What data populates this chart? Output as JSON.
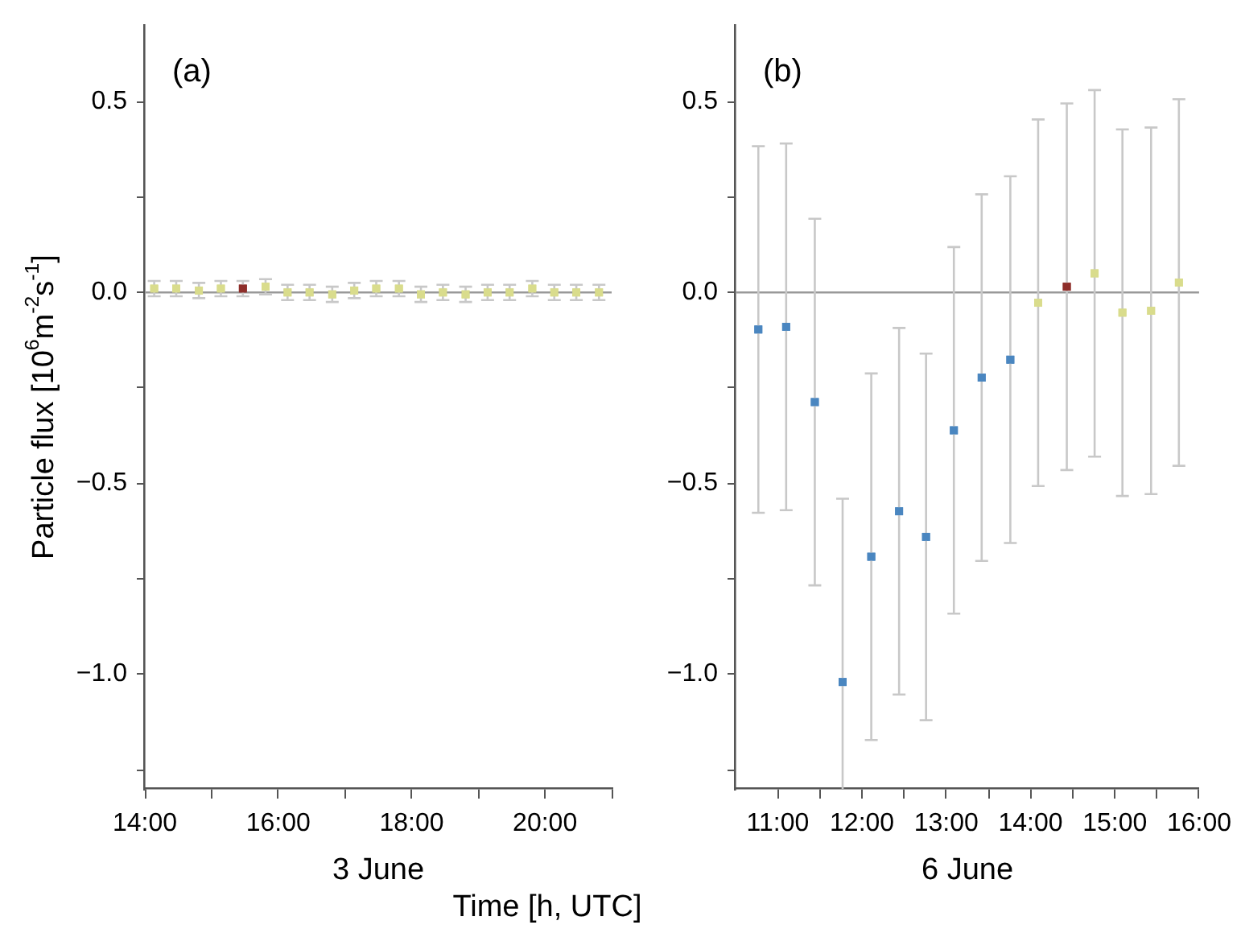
{
  "chart_data": [
    {
      "type": "scatter",
      "title": "(a)",
      "xlabel": "3 June",
      "ylabel": "Particle flux [10$^{6}$m$^{-2}$s$^{-1}$]",
      "x": [
        14.14,
        14.47,
        14.81,
        15.14,
        15.47,
        15.81,
        16.14,
        16.47,
        16.81,
        17.14,
        17.47,
        17.81,
        18.14,
        18.47,
        18.81,
        19.14,
        19.47,
        19.81,
        20.14,
        20.47,
        20.81
      ],
      "values": [
        0.01,
        0.01,
        0.005,
        0.01,
        0.01,
        0.015,
        0,
        0,
        -0.005,
        0.005,
        0.01,
        0.01,
        -0.005,
        0,
        -0.005,
        0,
        0,
        0.01,
        0,
        0,
        0
      ],
      "colors": [
        "#d9dc8c",
        "#d9dc8c",
        "#d9dc8c",
        "#d9dc8c",
        "#8e2e2a",
        "#d9dc8c",
        "#d9dc8c",
        "#d9dc8c",
        "#d9dc8c",
        "#d9dc8c",
        "#d9dc8c",
        "#d9dc8c",
        "#d9dc8c",
        "#d9dc8c",
        "#d9dc8c",
        "#d9dc8c",
        "#d9dc8c",
        "#d9dc8c",
        "#d9dc8c",
        "#d9dc8c",
        "#d9dc8c"
      ],
      "errors": [
        0.02,
        0.02,
        0.02,
        0.02,
        0.02,
        0.02,
        0.02,
        0.02,
        0.02,
        0.02,
        0.02,
        0.02,
        0.02,
        0.02,
        0.02,
        0.02,
        0.02,
        0.02,
        0.02,
        0.02,
        0.02
      ],
      "marker": "square",
      "grid": false,
      "legend": false,
      "xlim": [
        14,
        21
      ],
      "xticks": [
        {
          "value": 14,
          "label": "14:00"
        },
        {
          "value": 15,
          "label": null
        },
        {
          "value": 16,
          "label": "16:00"
        },
        {
          "value": 17,
          "label": null
        },
        {
          "value": 18,
          "label": "18:00"
        },
        {
          "value": 19,
          "label": null
        },
        {
          "value": 20,
          "label": "20:00"
        },
        {
          "value": 21,
          "label": null
        }
      ],
      "ylim": [
        -1.3,
        0.7
      ],
      "yticks": [
        {
          "value": -1.25,
          "label": null
        },
        {
          "value": -1.0,
          "label": "−1.0"
        },
        {
          "value": -0.75,
          "label": null
        },
        {
          "value": -0.5,
          "label": "−0.5"
        },
        {
          "value": -0.25,
          "label": null
        },
        {
          "value": 0,
          "label": "0.0"
        },
        {
          "value": 0.25,
          "label": null
        },
        {
          "value": 0.5,
          "label": "0.5"
        }
      ],
      "ref_lines": [
        {
          "axis": "y",
          "value": 0,
          "color": "#999999"
        }
      ]
    },
    {
      "type": "scatter",
      "title": "(b)",
      "xlabel": "6 June",
      "annotations": [
        "Time [h, UTC]"
      ],
      "x": [
        10.77,
        11.1,
        11.44,
        11.77,
        12.11,
        12.44,
        12.76,
        13.09,
        13.42,
        13.76,
        14.09,
        14.43,
        14.76,
        15.09,
        15.43,
        15.76
      ],
      "values": [
        -0.097,
        -0.09,
        -0.287,
        -1.02,
        -0.692,
        -0.573,
        -0.64,
        -0.361,
        -0.223,
        -0.176,
        -0.027,
        0.015,
        0.05,
        -0.053,
        -0.048,
        0.026
      ],
      "colors": [
        "#4a86c0",
        "#4a86c0",
        "#4a86c0",
        "#4a86c0",
        "#4a86c0",
        "#4a86c0",
        "#4a86c0",
        "#4a86c0",
        "#4a86c0",
        "#4a86c0",
        "#d9dc8c",
        "#8e2e2a",
        "#d9dc8c",
        "#d9dc8c",
        "#d9dc8c",
        "#d9dc8c"
      ],
      "errors": [
        0.48,
        0.48,
        0.48,
        0.48,
        0.48,
        0.48,
        0.48,
        0.48,
        0.48,
        0.48,
        0.48,
        0.48,
        0.48,
        0.48,
        0.48,
        0.48
      ],
      "marker": "square",
      "grid": false,
      "legend": false,
      "xlim": [
        10.5,
        16
      ],
      "xticks": [
        {
          "value": 11,
          "label": "11:00"
        },
        {
          "value": 11.5,
          "label": null
        },
        {
          "value": 12,
          "label": "12:00"
        },
        {
          "value": 12.5,
          "label": null
        },
        {
          "value": 13,
          "label": "13:00"
        },
        {
          "value": 13.5,
          "label": null
        },
        {
          "value": 14,
          "label": "14:00"
        },
        {
          "value": 14.5,
          "label": null
        },
        {
          "value": 15,
          "label": "15:00"
        },
        {
          "value": 15.5,
          "label": null
        },
        {
          "value": 16,
          "label": "16:00"
        }
      ],
      "ylim": [
        -1.3,
        0.7
      ],
      "yticks": [
        {
          "value": -1.25,
          "label": null
        },
        {
          "value": -1.0,
          "label": "−1.0"
        },
        {
          "value": -0.75,
          "label": null
        },
        {
          "value": -0.5,
          "label": "−0.5"
        },
        {
          "value": -0.25,
          "label": null
        },
        {
          "value": 0,
          "label": "0.0"
        },
        {
          "value": 0.25,
          "label": null
        },
        {
          "value": 0.5,
          "label": "0.5"
        }
      ],
      "ref_lines": [
        {
          "axis": "y",
          "value": 0,
          "color": "#999999"
        }
      ]
    }
  ]
}
